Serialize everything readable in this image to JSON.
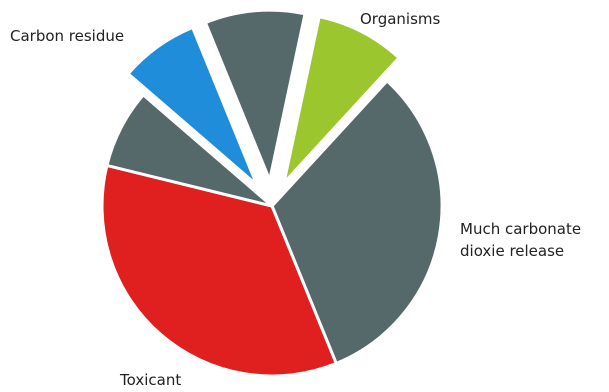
{
  "chart_data": {
    "type": "pie",
    "title": "",
    "slices": [
      {
        "label": "Organisms",
        "value": 8.5,
        "color": "#9bc62e",
        "exploded": true
      },
      {
        "label": "Much carbonate dioxie release",
        "value": 32,
        "color": "#55696b",
        "exploded": false
      },
      {
        "label": "Toxicant",
        "value": 35,
        "color": "#e01f1f",
        "exploded": false
      },
      {
        "label": "",
        "value": 7.5,
        "color": "#55696b",
        "exploded": false
      },
      {
        "label": "Carbon residue",
        "value": 7.5,
        "color": "#1f8dd9",
        "exploded": true
      },
      {
        "label": "",
        "value": 9.5,
        "color": "#55696b",
        "exploded": true
      }
    ],
    "legend": "none"
  }
}
